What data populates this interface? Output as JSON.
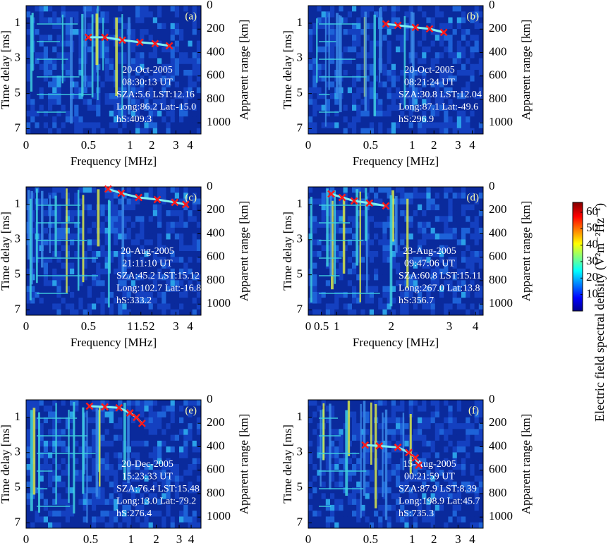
{
  "chart_data": [
    {
      "type": "ionogram",
      "panel_label": "(a)",
      "x_label": "Frequency [MHz]",
      "y_label": "Time delay [ms]",
      "y2_label": "Apparent range [km]",
      "annotations": [
        "20-Oct-2005",
        "08:30:13 UT",
        "SZA:5.6 LST:12.16",
        "Long:86.2 Lat:-15.0",
        "hS:409.3"
      ],
      "xlim": [
        0,
        160
      ],
      "xticks": [
        {
          "value": 0,
          "label": "0"
        },
        {
          "value": 57,
          "label": "0.5"
        },
        {
          "value": 95,
          "label": "1"
        },
        {
          "value": 115,
          "label": "2"
        },
        {
          "value": 137,
          "label": "3"
        },
        {
          "value": 150,
          "label": "4"
        }
      ],
      "ylim": [
        7.3,
        0
      ],
      "yticks": [
        1,
        3,
        5,
        7
      ],
      "y2lim": [
        1095,
        0
      ],
      "y2ticks": [
        0,
        200,
        400,
        600,
        800,
        1000
      ],
      "x": [
        57,
        72,
        88,
        104,
        118,
        131
      ],
      "values": [
        1.8,
        1.8,
        1.96,
        2.08,
        2.16,
        2.28
      ],
      "color": "#ff1a1a"
    },
    {
      "type": "ionogram",
      "panel_label": "(b)",
      "x_label": "Frequency [MHz]",
      "y_label": "Time delay [ms]",
      "y2_label": "Apparent range [km]",
      "annotations": [
        "20-Oct-2005",
        "08:21:24 UT",
        "SZA:30.8 LST:12.04",
        "Long:87.1 Lat:-49.6",
        "hS:296.9"
      ],
      "xlim": [
        0,
        160
      ],
      "xticks": [
        {
          "value": 0,
          "label": "0"
        },
        {
          "value": 57,
          "label": "0.5"
        },
        {
          "value": 95,
          "label": "1"
        },
        {
          "value": 115,
          "label": "2"
        },
        {
          "value": 137,
          "label": "3"
        },
        {
          "value": 150,
          "label": "4"
        }
      ],
      "ylim": [
        7.3,
        0
      ],
      "yticks": [
        1,
        3,
        5,
        7
      ],
      "y2lim": [
        1095,
        0
      ],
      "y2ticks": [
        0,
        200,
        400,
        600,
        800,
        1000
      ],
      "x": [
        71,
        82,
        98,
        111,
        124
      ],
      "values": [
        1.04,
        1.12,
        1.24,
        1.32,
        1.52
      ],
      "color": "#ff1a1a"
    },
    {
      "type": "ionogram",
      "panel_label": "(c)",
      "x_label": "Frequency [MHz]",
      "y_label": "Time delay [ms]",
      "y2_label": "Apparent range [km]",
      "annotations": [
        "20-Aug-2005",
        "21:11:10 UT",
        "SZA:45.2 LST:15.12",
        "Long:102.7 Lat:-16.8",
        "hS:333.2"
      ],
      "xlim": [
        0,
        160
      ],
      "xticks": [
        {
          "value": 0,
          "label": "0"
        },
        {
          "value": 57,
          "label": "0.5"
        },
        {
          "value": 95,
          "label": "1"
        },
        {
          "value": 105,
          "label": "1.5"
        },
        {
          "value": 115,
          "label": "2"
        },
        {
          "value": 137,
          "label": "3"
        },
        {
          "value": 150,
          "label": "4"
        }
      ],
      "ylim": [
        7.3,
        0
      ],
      "yticks": [
        1,
        3,
        5,
        7
      ],
      "y2lim": [
        1095,
        0
      ],
      "y2ticks": [
        0,
        200,
        400,
        600,
        800,
        1000
      ],
      "x": [
        75,
        87,
        103,
        120,
        136,
        146
      ],
      "values": [
        0.12,
        0.36,
        0.6,
        0.72,
        0.88,
        1.0
      ],
      "color": "#ff1a1a"
    },
    {
      "type": "ionogram",
      "panel_label": "(d)",
      "x_label": "Frequency [MHz]",
      "y_label": "Time delay [ms]",
      "y2_label": "Apparent range [km]",
      "annotations": [
        "23-Aug-2005",
        "09:47:06 UT",
        "SZA:60.8 LST:15.11",
        "Long:267.0 Lat:13.8",
        "hS:356.7"
      ],
      "xlim": [
        0,
        160
      ],
      "xticks": [
        {
          "value": 0,
          "label": "0"
        },
        {
          "value": 12,
          "label": "0.5"
        },
        {
          "value": 26,
          "label": "1"
        },
        {
          "value": 76,
          "label": "2"
        },
        {
          "value": 129,
          "label": "3"
        },
        {
          "value": 153,
          "label": "4"
        }
      ],
      "ylim": [
        7.3,
        0
      ],
      "yticks": [
        1,
        3,
        5,
        7
      ],
      "y2lim": [
        1095,
        0
      ],
      "y2ticks": [
        0,
        200,
        400,
        600,
        800,
        1000
      ],
      "x": [
        21,
        31,
        42,
        56,
        71
      ],
      "values": [
        0.4,
        0.6,
        0.8,
        0.92,
        1.08
      ],
      "color": "#ff1a1a"
    },
    {
      "type": "ionogram",
      "panel_label": "(e)",
      "x_label": "Frequency [MHz]",
      "y_label": "Time delay [ms]",
      "y2_label": "Apparent range [km]",
      "annotations": [
        "20-Dec-2005",
        "15:23:33 UT",
        "SZA:76.4 LST:15.48",
        "Long:13.0 Lat:-79.2",
        "hS:276.4"
      ],
      "xlim": [
        0,
        160
      ],
      "xticks": [
        {
          "value": 0,
          "label": "0"
        },
        {
          "value": 59,
          "label": "0.5"
        },
        {
          "value": 96,
          "label": "1"
        },
        {
          "value": 119,
          "label": "2"
        },
        {
          "value": 140,
          "label": "3"
        },
        {
          "value": 151,
          "label": "4"
        }
      ],
      "ylim": [
        7.3,
        0
      ],
      "yticks": [
        1,
        3,
        5,
        7
      ],
      "y2lim": [
        1095,
        0
      ],
      "y2ticks": [
        0,
        200,
        400,
        600,
        800,
        1000
      ],
      "x": [
        58,
        72,
        85,
        95,
        101,
        106
      ],
      "values": [
        0.36,
        0.4,
        0.45,
        0.74,
        1.0,
        1.34
      ],
      "color": "#ff1a1a"
    },
    {
      "type": "ionogram",
      "panel_label": "(f)",
      "x_label": "Frequency [MHz]",
      "y_label": "Time delay [ms]",
      "y2_label": "Apparent range [km]",
      "annotations": [
        "15-Aug-2005",
        "00:21:59 UT",
        "SZA:87.9 LST:8.39",
        "Long:198.9 Lat:45.7",
        "hS:735.3"
      ],
      "xlim": [
        0,
        160
      ],
      "xticks": [
        {
          "value": 0,
          "label": "0"
        },
        {
          "value": 57,
          "label": "0.5"
        },
        {
          "value": 95,
          "label": "1"
        },
        {
          "value": 115,
          "label": "2"
        },
        {
          "value": 137,
          "label": "3"
        },
        {
          "value": 150,
          "label": "4"
        }
      ],
      "ylim": [
        7.3,
        0
      ],
      "yticks": [
        1,
        3,
        5,
        7
      ],
      "y2lim": [
        1095,
        0
      ],
      "y2ticks": [
        0,
        200,
        400,
        600,
        800,
        1000
      ],
      "x": [
        52,
        65,
        82,
        92,
        98,
        101
      ],
      "values": [
        2.57,
        2.62,
        2.7,
        3.0,
        3.3,
        3.72
      ],
      "color": "#ff1a1a"
    },
    {
      "type": "colorbar",
      "label": "Electric field spectral density (V²m⁻²Hz⁻¹)",
      "ylim": [
        0,
        66
      ],
      "yticks": [
        10,
        20,
        30,
        40,
        50,
        60
      ]
    }
  ]
}
